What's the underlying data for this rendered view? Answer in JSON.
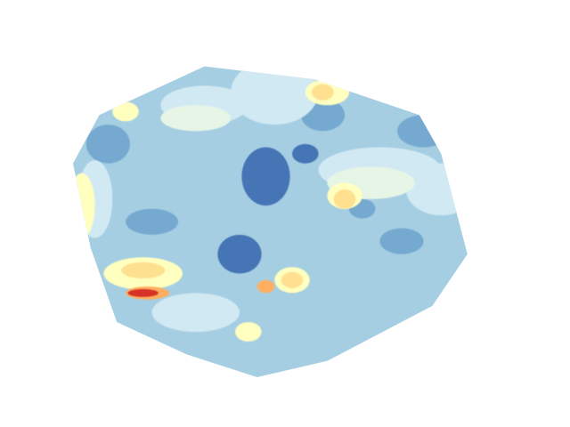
{
  "chart_data": {
    "type": "heatmap",
    "subtype": "filled-contour",
    "title": "",
    "xlabel": "",
    "ylabel": "",
    "axes_visible": false,
    "grid": false,
    "legend": "none",
    "colormap": "RdYlBu_r",
    "levels": [
      0,
      1,
      2,
      3,
      4,
      5,
      6,
      7,
      8
    ],
    "level_colors": [
      "#4575b4",
      "#74a9cf",
      "#a6cee3",
      "#d1e9f3",
      "#e6f5e6",
      "#ffffbf",
      "#fee090",
      "#fdae61",
      "#d73027"
    ],
    "background_level": 2,
    "domain_outline": [
      [
        0.3,
        0.04
      ],
      [
        0.55,
        0.08
      ],
      [
        0.79,
        0.19
      ],
      [
        0.84,
        0.31
      ],
      [
        0.9,
        0.62
      ],
      [
        0.82,
        0.78
      ],
      [
        0.58,
        0.95
      ],
      [
        0.42,
        1.0
      ],
      [
        0.26,
        0.93
      ],
      [
        0.1,
        0.83
      ],
      [
        0.04,
        0.6
      ],
      [
        0.0,
        0.34
      ],
      [
        0.06,
        0.19
      ]
    ],
    "blobs": [
      {
        "x": 0.44,
        "y": 0.38,
        "rx": 0.055,
        "ry": 0.09,
        "level": 0
      },
      {
        "x": 0.53,
        "y": 0.31,
        "rx": 0.03,
        "ry": 0.03,
        "level": 0
      },
      {
        "x": 0.38,
        "y": 0.62,
        "rx": 0.05,
        "ry": 0.06,
        "level": 0
      },
      {
        "x": 0.08,
        "y": 0.28,
        "rx": 0.05,
        "ry": 0.06,
        "level": 1
      },
      {
        "x": 0.57,
        "y": 0.19,
        "rx": 0.05,
        "ry": 0.05,
        "level": 1
      },
      {
        "x": 0.8,
        "y": 0.24,
        "rx": 0.06,
        "ry": 0.05,
        "level": 1
      },
      {
        "x": 0.75,
        "y": 0.58,
        "rx": 0.05,
        "ry": 0.04,
        "level": 1
      },
      {
        "x": 0.87,
        "y": 0.8,
        "rx": 0.04,
        "ry": 0.06,
        "level": 1
      },
      {
        "x": 0.18,
        "y": 0.52,
        "rx": 0.06,
        "ry": 0.04,
        "level": 1
      },
      {
        "x": 0.66,
        "y": 0.48,
        "rx": 0.03,
        "ry": 0.03,
        "level": 1
      },
      {
        "x": 0.46,
        "y": 0.12,
        "rx": 0.1,
        "ry": 0.1,
        "level": 3
      },
      {
        "x": 0.7,
        "y": 0.36,
        "rx": 0.14,
        "ry": 0.07,
        "level": 3
      },
      {
        "x": 0.3,
        "y": 0.16,
        "rx": 0.1,
        "ry": 0.06,
        "level": 3
      },
      {
        "x": 0.84,
        "y": 0.42,
        "rx": 0.08,
        "ry": 0.08,
        "level": 3
      },
      {
        "x": 0.28,
        "y": 0.8,
        "rx": 0.1,
        "ry": 0.06,
        "level": 3
      },
      {
        "x": 0.05,
        "y": 0.45,
        "rx": 0.04,
        "ry": 0.12,
        "level": 3
      },
      {
        "x": 0.68,
        "y": 0.4,
        "rx": 0.1,
        "ry": 0.05,
        "level": 4
      },
      {
        "x": 0.28,
        "y": 0.2,
        "rx": 0.08,
        "ry": 0.04,
        "level": 4
      },
      {
        "x": 0.58,
        "y": 0.12,
        "rx": 0.05,
        "ry": 0.04,
        "level": 5
      },
      {
        "x": 0.12,
        "y": 0.18,
        "rx": 0.03,
        "ry": 0.03,
        "level": 5
      },
      {
        "x": 0.02,
        "y": 0.47,
        "rx": 0.03,
        "ry": 0.1,
        "level": 5
      },
      {
        "x": 0.16,
        "y": 0.68,
        "rx": 0.09,
        "ry": 0.05,
        "level": 5
      },
      {
        "x": 0.62,
        "y": 0.44,
        "rx": 0.04,
        "ry": 0.04,
        "level": 5
      },
      {
        "x": 0.4,
        "y": 0.86,
        "rx": 0.03,
        "ry": 0.03,
        "level": 5
      },
      {
        "x": 0.5,
        "y": 0.7,
        "rx": 0.04,
        "ry": 0.04,
        "level": 5
      },
      {
        "x": 0.86,
        "y": 0.9,
        "rx": 0.03,
        "ry": 0.03,
        "level": 5
      },
      {
        "x": 0.57,
        "y": 0.12,
        "rx": 0.025,
        "ry": 0.025,
        "level": 6
      },
      {
        "x": 0.62,
        "y": 0.45,
        "rx": 0.025,
        "ry": 0.03,
        "level": 6
      },
      {
        "x": 0.5,
        "y": 0.7,
        "rx": 0.025,
        "ry": 0.025,
        "level": 6
      },
      {
        "x": 0.16,
        "y": 0.67,
        "rx": 0.05,
        "ry": 0.025,
        "level": 6
      },
      {
        "x": 0.44,
        "y": 0.72,
        "rx": 0.02,
        "ry": 0.02,
        "level": 7
      },
      {
        "x": 0.17,
        "y": 0.74,
        "rx": 0.05,
        "ry": 0.02,
        "level": 7
      },
      {
        "x": 0.16,
        "y": 0.74,
        "rx": 0.035,
        "ry": 0.012,
        "level": 8
      }
    ]
  }
}
